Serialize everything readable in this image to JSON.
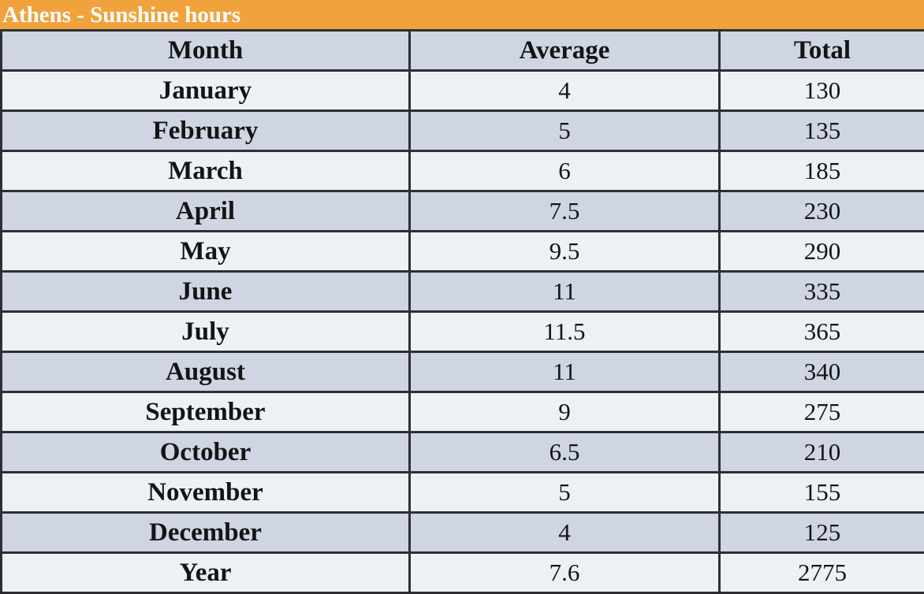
{
  "title": "Athens - Sunshine hours",
  "table": {
    "headers": [
      "Month",
      "Average",
      "Total"
    ],
    "rows": [
      {
        "month": "January",
        "average": "4",
        "total": "130"
      },
      {
        "month": "February",
        "average": "5",
        "total": "135"
      },
      {
        "month": "March",
        "average": "6",
        "total": "185"
      },
      {
        "month": "April",
        "average": "7.5",
        "total": "230"
      },
      {
        "month": "May",
        "average": "9.5",
        "total": "290"
      },
      {
        "month": "June",
        "average": "11",
        "total": "335"
      },
      {
        "month": "July",
        "average": "11.5",
        "total": "365"
      },
      {
        "month": "August",
        "average": "11",
        "total": "340"
      },
      {
        "month": "September",
        "average": "9",
        "total": "275"
      },
      {
        "month": "October",
        "average": "6.5",
        "total": "210"
      },
      {
        "month": "November",
        "average": "5",
        "total": "155"
      },
      {
        "month": "December",
        "average": "4",
        "total": "125"
      },
      {
        "month": "Year",
        "average": "7.6",
        "total": "2775"
      }
    ]
  },
  "colors": {
    "title_bg": "#F0A23C",
    "title_text": "#FFFFFF",
    "row_dark": "#CFD5E2",
    "row_light": "#EDF1F5",
    "border": "#2D2F33",
    "text": "#141414"
  },
  "chart_data": {
    "type": "table",
    "title": "Athens - Sunshine hours",
    "columns": [
      "Month",
      "Average",
      "Total"
    ],
    "categories": [
      "January",
      "February",
      "March",
      "April",
      "May",
      "June",
      "July",
      "August",
      "September",
      "October",
      "November",
      "December"
    ],
    "series": [
      {
        "name": "Average",
        "values": [
          4,
          5,
          6,
          7.5,
          9.5,
          11,
          11.5,
          11,
          9,
          6.5,
          5,
          4
        ]
      },
      {
        "name": "Total",
        "values": [
          130,
          135,
          185,
          230,
          290,
          335,
          365,
          340,
          275,
          210,
          155,
          125
        ]
      }
    ],
    "summary_row": {
      "label": "Year",
      "average": 7.6,
      "total": 2775
    }
  }
}
